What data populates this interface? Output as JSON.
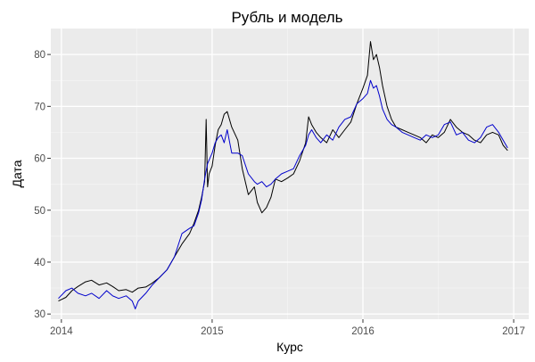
{
  "chart_data": {
    "type": "line",
    "title": "Рубль и модель",
    "xlabel": "Курс",
    "ylabel": "Дата",
    "xlim": [
      2013.93,
      2017.1
    ],
    "ylim": [
      29,
      85
    ],
    "x_ticks": [
      {
        "value": 2014,
        "label": "2014"
      },
      {
        "value": 2015,
        "label": "2015"
      },
      {
        "value": 2016,
        "label": "2016"
      },
      {
        "value": 2017,
        "label": "2017"
      }
    ],
    "y_ticks": [
      {
        "value": 30,
        "label": "30"
      },
      {
        "value": 40,
        "label": "40"
      },
      {
        "value": 50,
        "label": "50"
      },
      {
        "value": 60,
        "label": "60"
      },
      {
        "value": 70,
        "label": "70"
      },
      {
        "value": 80,
        "label": "80"
      }
    ],
    "grid": true,
    "panel_background": "#ebebeb",
    "series": [
      {
        "color": "#000000",
        "x": [
          2013.98,
          2014.03,
          2014.07,
          2014.11,
          2014.16,
          2014.2,
          2014.25,
          2014.3,
          2014.34,
          2014.38,
          2014.43,
          2014.47,
          2014.51,
          2014.56,
          2014.6,
          2014.65,
          2014.7,
          2014.75,
          2014.8,
          2014.85,
          2014.88,
          2014.91,
          2014.93,
          2014.95,
          2014.96,
          2014.97,
          2014.98,
          2015.0,
          2015.02,
          2015.04,
          2015.06,
          2015.08,
          2015.1,
          2015.13,
          2015.17,
          2015.2,
          2015.24,
          2015.28,
          2015.3,
          2015.33,
          2015.36,
          2015.39,
          2015.42,
          2015.46,
          2015.5,
          2015.54,
          2015.58,
          2015.62,
          2015.64,
          2015.66,
          2015.69,
          2015.72,
          2015.76,
          2015.8,
          2015.84,
          2015.88,
          2015.92,
          2015.96,
          2016.0,
          2016.03,
          2016.05,
          2016.07,
          2016.09,
          2016.11,
          2016.13,
          2016.16,
          2016.19,
          2016.22,
          2016.26,
          2016.3,
          2016.34,
          2016.38,
          2016.42,
          2016.46,
          2016.5,
          2016.54,
          2016.58,
          2016.62,
          2016.66,
          2016.7,
          2016.74,
          2016.78,
          2016.82,
          2016.86,
          2016.9,
          2016.93,
          2016.96
        ],
        "y": [
          32.5,
          33.2,
          34.5,
          35.3,
          36.2,
          36.5,
          35.6,
          36.0,
          35.3,
          34.5,
          34.7,
          34.2,
          35.0,
          35.2,
          35.9,
          37.0,
          38.5,
          41.0,
          43.5,
          45.5,
          47.5,
          50.0,
          52.5,
          55.5,
          67.5,
          54.5,
          57.0,
          58.5,
          62.5,
          65.5,
          66.5,
          68.5,
          69.0,
          66.0,
          63.5,
          58.0,
          53.0,
          54.5,
          51.5,
          49.5,
          50.5,
          52.5,
          56.0,
          55.5,
          56.2,
          57.0,
          59.5,
          63.0,
          68.0,
          66.5,
          65.0,
          64.0,
          63.0,
          65.5,
          64.0,
          65.5,
          67.0,
          70.5,
          73.5,
          76.0,
          82.5,
          79.0,
          80.0,
          77.5,
          74.0,
          70.0,
          67.5,
          66.0,
          65.5,
          65.0,
          64.5,
          64.0,
          63.0,
          64.5,
          64.0,
          65.0,
          67.5,
          66.0,
          65.0,
          64.5,
          63.5,
          63.0,
          64.5,
          65.0,
          64.5,
          62.5,
          61.5
        ]
      },
      {
        "color": "#0000cc",
        "x": [
          2013.98,
          2014.03,
          2014.07,
          2014.11,
          2014.16,
          2014.2,
          2014.25,
          2014.3,
          2014.34,
          2014.38,
          2014.43,
          2014.47,
          2014.49,
          2014.51,
          2014.56,
          2014.6,
          2014.65,
          2014.7,
          2014.75,
          2014.8,
          2014.85,
          2014.88,
          2014.91,
          2014.93,
          2014.95,
          2014.97,
          2015.0,
          2015.02,
          2015.04,
          2015.06,
          2015.08,
          2015.1,
          2015.13,
          2015.17,
          2015.2,
          2015.24,
          2015.28,
          2015.3,
          2015.33,
          2015.36,
          2015.39,
          2015.42,
          2015.46,
          2015.5,
          2015.54,
          2015.58,
          2015.62,
          2015.64,
          2015.66,
          2015.69,
          2015.72,
          2015.76,
          2015.8,
          2015.84,
          2015.88,
          2015.92,
          2015.96,
          2016.0,
          2016.03,
          2016.05,
          2016.07,
          2016.09,
          2016.11,
          2016.13,
          2016.16,
          2016.19,
          2016.22,
          2016.26,
          2016.3,
          2016.34,
          2016.38,
          2016.42,
          2016.46,
          2016.5,
          2016.54,
          2016.58,
          2016.62,
          2016.66,
          2016.7,
          2016.74,
          2016.78,
          2016.82,
          2016.86,
          2016.9,
          2016.93,
          2016.96
        ],
        "y": [
          33.0,
          34.5,
          35.0,
          34.0,
          33.5,
          34.0,
          33.0,
          34.5,
          33.5,
          33.0,
          33.5,
          32.5,
          31.0,
          32.5,
          34.0,
          35.5,
          37.0,
          38.5,
          41.0,
          45.5,
          46.5,
          47.0,
          49.5,
          52.0,
          56.0,
          59.0,
          61.0,
          63.0,
          64.0,
          64.5,
          63.0,
          65.5,
          61.0,
          61.0,
          60.5,
          57.0,
          55.5,
          55.0,
          55.5,
          54.5,
          55.0,
          56.0,
          57.0,
          57.5,
          58.0,
          60.5,
          62.5,
          64.5,
          65.5,
          64.0,
          63.0,
          64.5,
          63.5,
          66.0,
          67.5,
          68.0,
          70.5,
          71.5,
          72.5,
          75.0,
          73.5,
          74.0,
          72.0,
          69.5,
          67.5,
          66.5,
          66.0,
          65.0,
          64.5,
          64.0,
          63.5,
          64.5,
          64.0,
          64.5,
          66.5,
          67.0,
          64.5,
          65.0,
          63.5,
          63.0,
          64.0,
          66.0,
          66.5,
          65.0,
          63.5,
          62.0
        ]
      }
    ]
  }
}
